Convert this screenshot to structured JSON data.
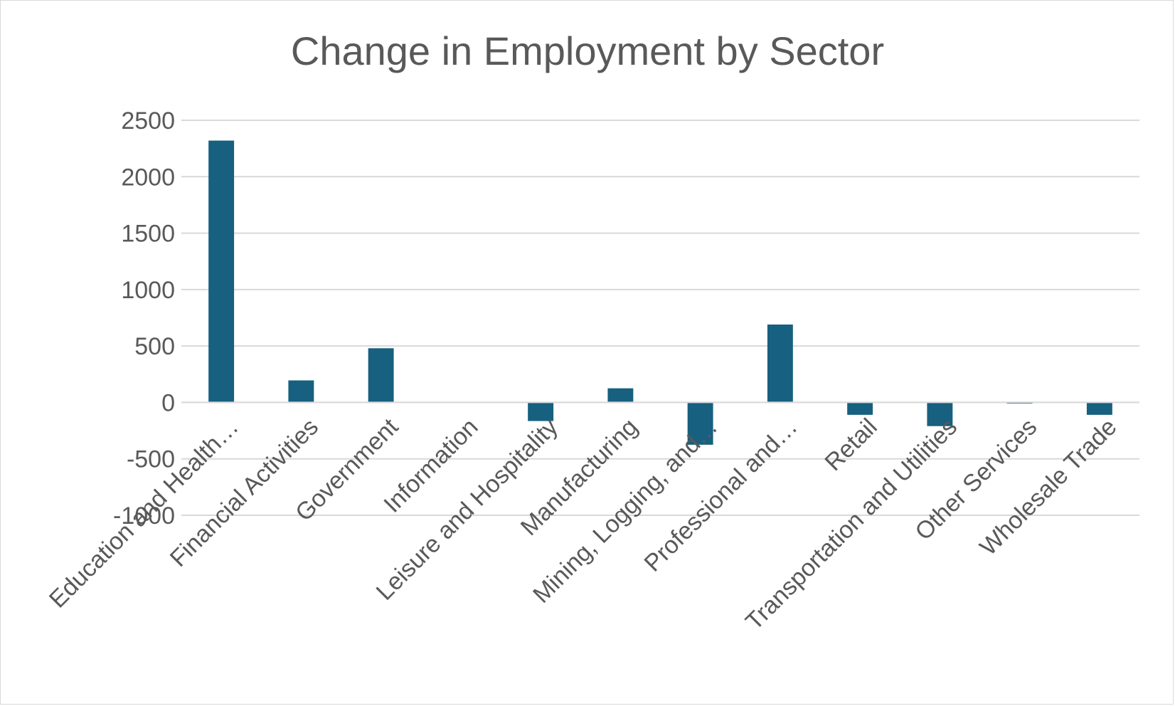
{
  "chart_data": {
    "type": "bar",
    "title": "Change in Employment by Sector",
    "xlabel": "",
    "ylabel": "",
    "categories": [
      "Education and Health…",
      "Financial Activities",
      "Government",
      "Information",
      "Leisure and Hospitality",
      "Manufacturing",
      "Mining, Logging, and…",
      "Professional and…",
      "Retail",
      "Transportation and Utilities",
      "Other Services",
      "Wholesale Trade"
    ],
    "values": [
      2320,
      195,
      480,
      0,
      -165,
      125,
      -375,
      690,
      -110,
      -210,
      -10,
      -110
    ],
    "ylim": [
      -1000,
      2500
    ],
    "yticks": [
      "2500",
      "2000",
      "1500",
      "1000",
      "500",
      "0",
      "-500",
      "-1000"
    ],
    "ytick_values": [
      2500,
      2000,
      1500,
      1000,
      500,
      0,
      -500,
      -1000
    ],
    "grid": true,
    "legend": "none",
    "bar_color": "#17607f",
    "gridline_color": "#d9d9d9"
  }
}
